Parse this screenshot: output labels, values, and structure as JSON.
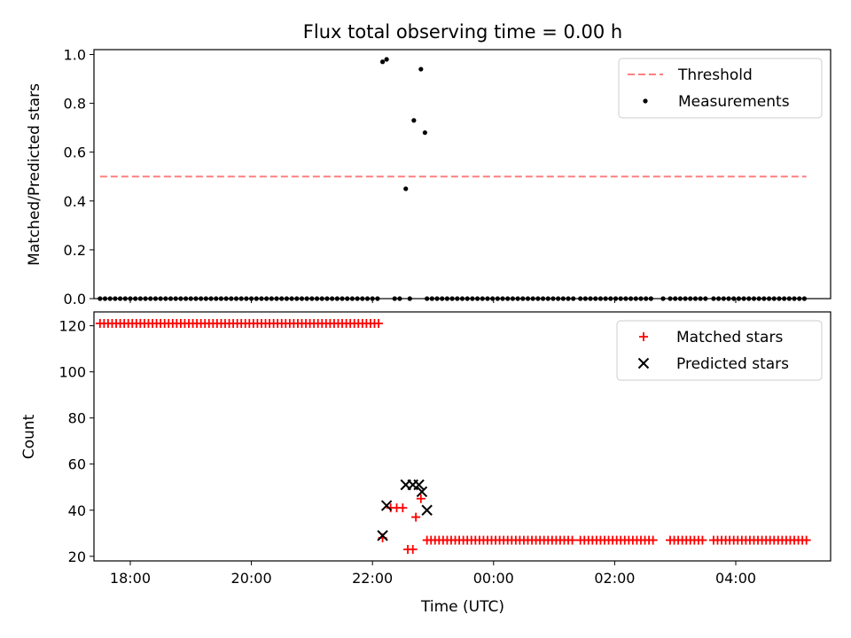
{
  "chart_data": [
    {
      "type": "scatter",
      "title": "Flux total observing time = 0.00 h",
      "xlabel": "",
      "ylabel": "Matched/Predicted stars",
      "xlim": [
        "17:24",
        "05:34"
      ],
      "ylim": [
        0.0,
        1.02
      ],
      "yticks": [
        "0.0",
        "0.2",
        "0.4",
        "0.6",
        "0.8",
        "1.0"
      ],
      "grid": false,
      "legend_placement": "top-right",
      "threshold": {
        "name": "Threshold",
        "value": 0.5,
        "x_start": "17:30",
        "x_end": "05:10",
        "color": "#ff7f7f"
      },
      "series": [
        {
          "name": "Measurements",
          "color": "#000000",
          "points": [
            {
              "x": "22:10",
              "y": 0.97
            },
            {
              "x": "22:14",
              "y": 0.98
            },
            {
              "x": "22:48",
              "y": 0.94
            },
            {
              "x": "22:41",
              "y": 0.73
            },
            {
              "x": "22:52",
              "y": 0.68
            },
            {
              "x": "22:33",
              "y": 0.45
            }
          ],
          "zero_runs": [
            {
              "start": "17:30",
              "end": "22:06"
            },
            {
              "start": "22:22",
              "end": "22:30"
            },
            {
              "start": "22:37",
              "end": "22:37"
            },
            {
              "start": "22:54",
              "end": "01:20"
            },
            {
              "start": "01:26",
              "end": "02:40"
            },
            {
              "start": "02:48",
              "end": "02:48"
            },
            {
              "start": "02:55",
              "end": "03:30"
            },
            {
              "start": "03:38",
              "end": "05:10"
            }
          ]
        }
      ]
    },
    {
      "type": "scatter",
      "title": "",
      "xlabel": "Time (UTC)",
      "ylabel": "Count",
      "xlim": [
        "17:24",
        "05:34"
      ],
      "ylim": [
        18,
        126
      ],
      "xticks": [
        "18:00",
        "20:00",
        "22:00",
        "00:00",
        "02:00",
        "04:00"
      ],
      "yticks": [
        "20",
        "40",
        "60",
        "80",
        "100",
        "120"
      ],
      "grid": false,
      "legend_placement": "top-right",
      "series": [
        {
          "name": "Matched stars",
          "color": "#ff0000",
          "points": [
            {
              "x": "22:10",
              "y": 28
            },
            {
              "x": "22:18",
              "y": 41
            },
            {
              "x": "22:24",
              "y": 41
            },
            {
              "x": "22:30",
              "y": 41
            },
            {
              "x": "22:35",
              "y": 23
            },
            {
              "x": "22:40",
              "y": 23
            },
            {
              "x": "22:43",
              "y": 37
            },
            {
              "x": "22:48",
              "y": 45
            }
          ],
          "runs": [
            {
              "start": "17:30",
              "end": "22:06",
              "y": 121
            },
            {
              "start": "22:54",
              "end": "01:20",
              "y": 27
            },
            {
              "start": "01:26",
              "end": "02:40",
              "y": 27
            },
            {
              "start": "02:55",
              "end": "03:30",
              "y": 27
            },
            {
              "start": "03:38",
              "end": "05:10",
              "y": 27
            }
          ]
        },
        {
          "name": "Predicted stars",
          "color": "#000000",
          "points": [
            {
              "x": "22:10",
              "y": 29
            },
            {
              "x": "22:14",
              "y": 42
            },
            {
              "x": "22:33",
              "y": 51
            },
            {
              "x": "22:40",
              "y": 51
            },
            {
              "x": "22:46",
              "y": 51
            },
            {
              "x": "22:49",
              "y": 48
            },
            {
              "x": "22:54",
              "y": 40
            }
          ]
        }
      ]
    }
  ]
}
